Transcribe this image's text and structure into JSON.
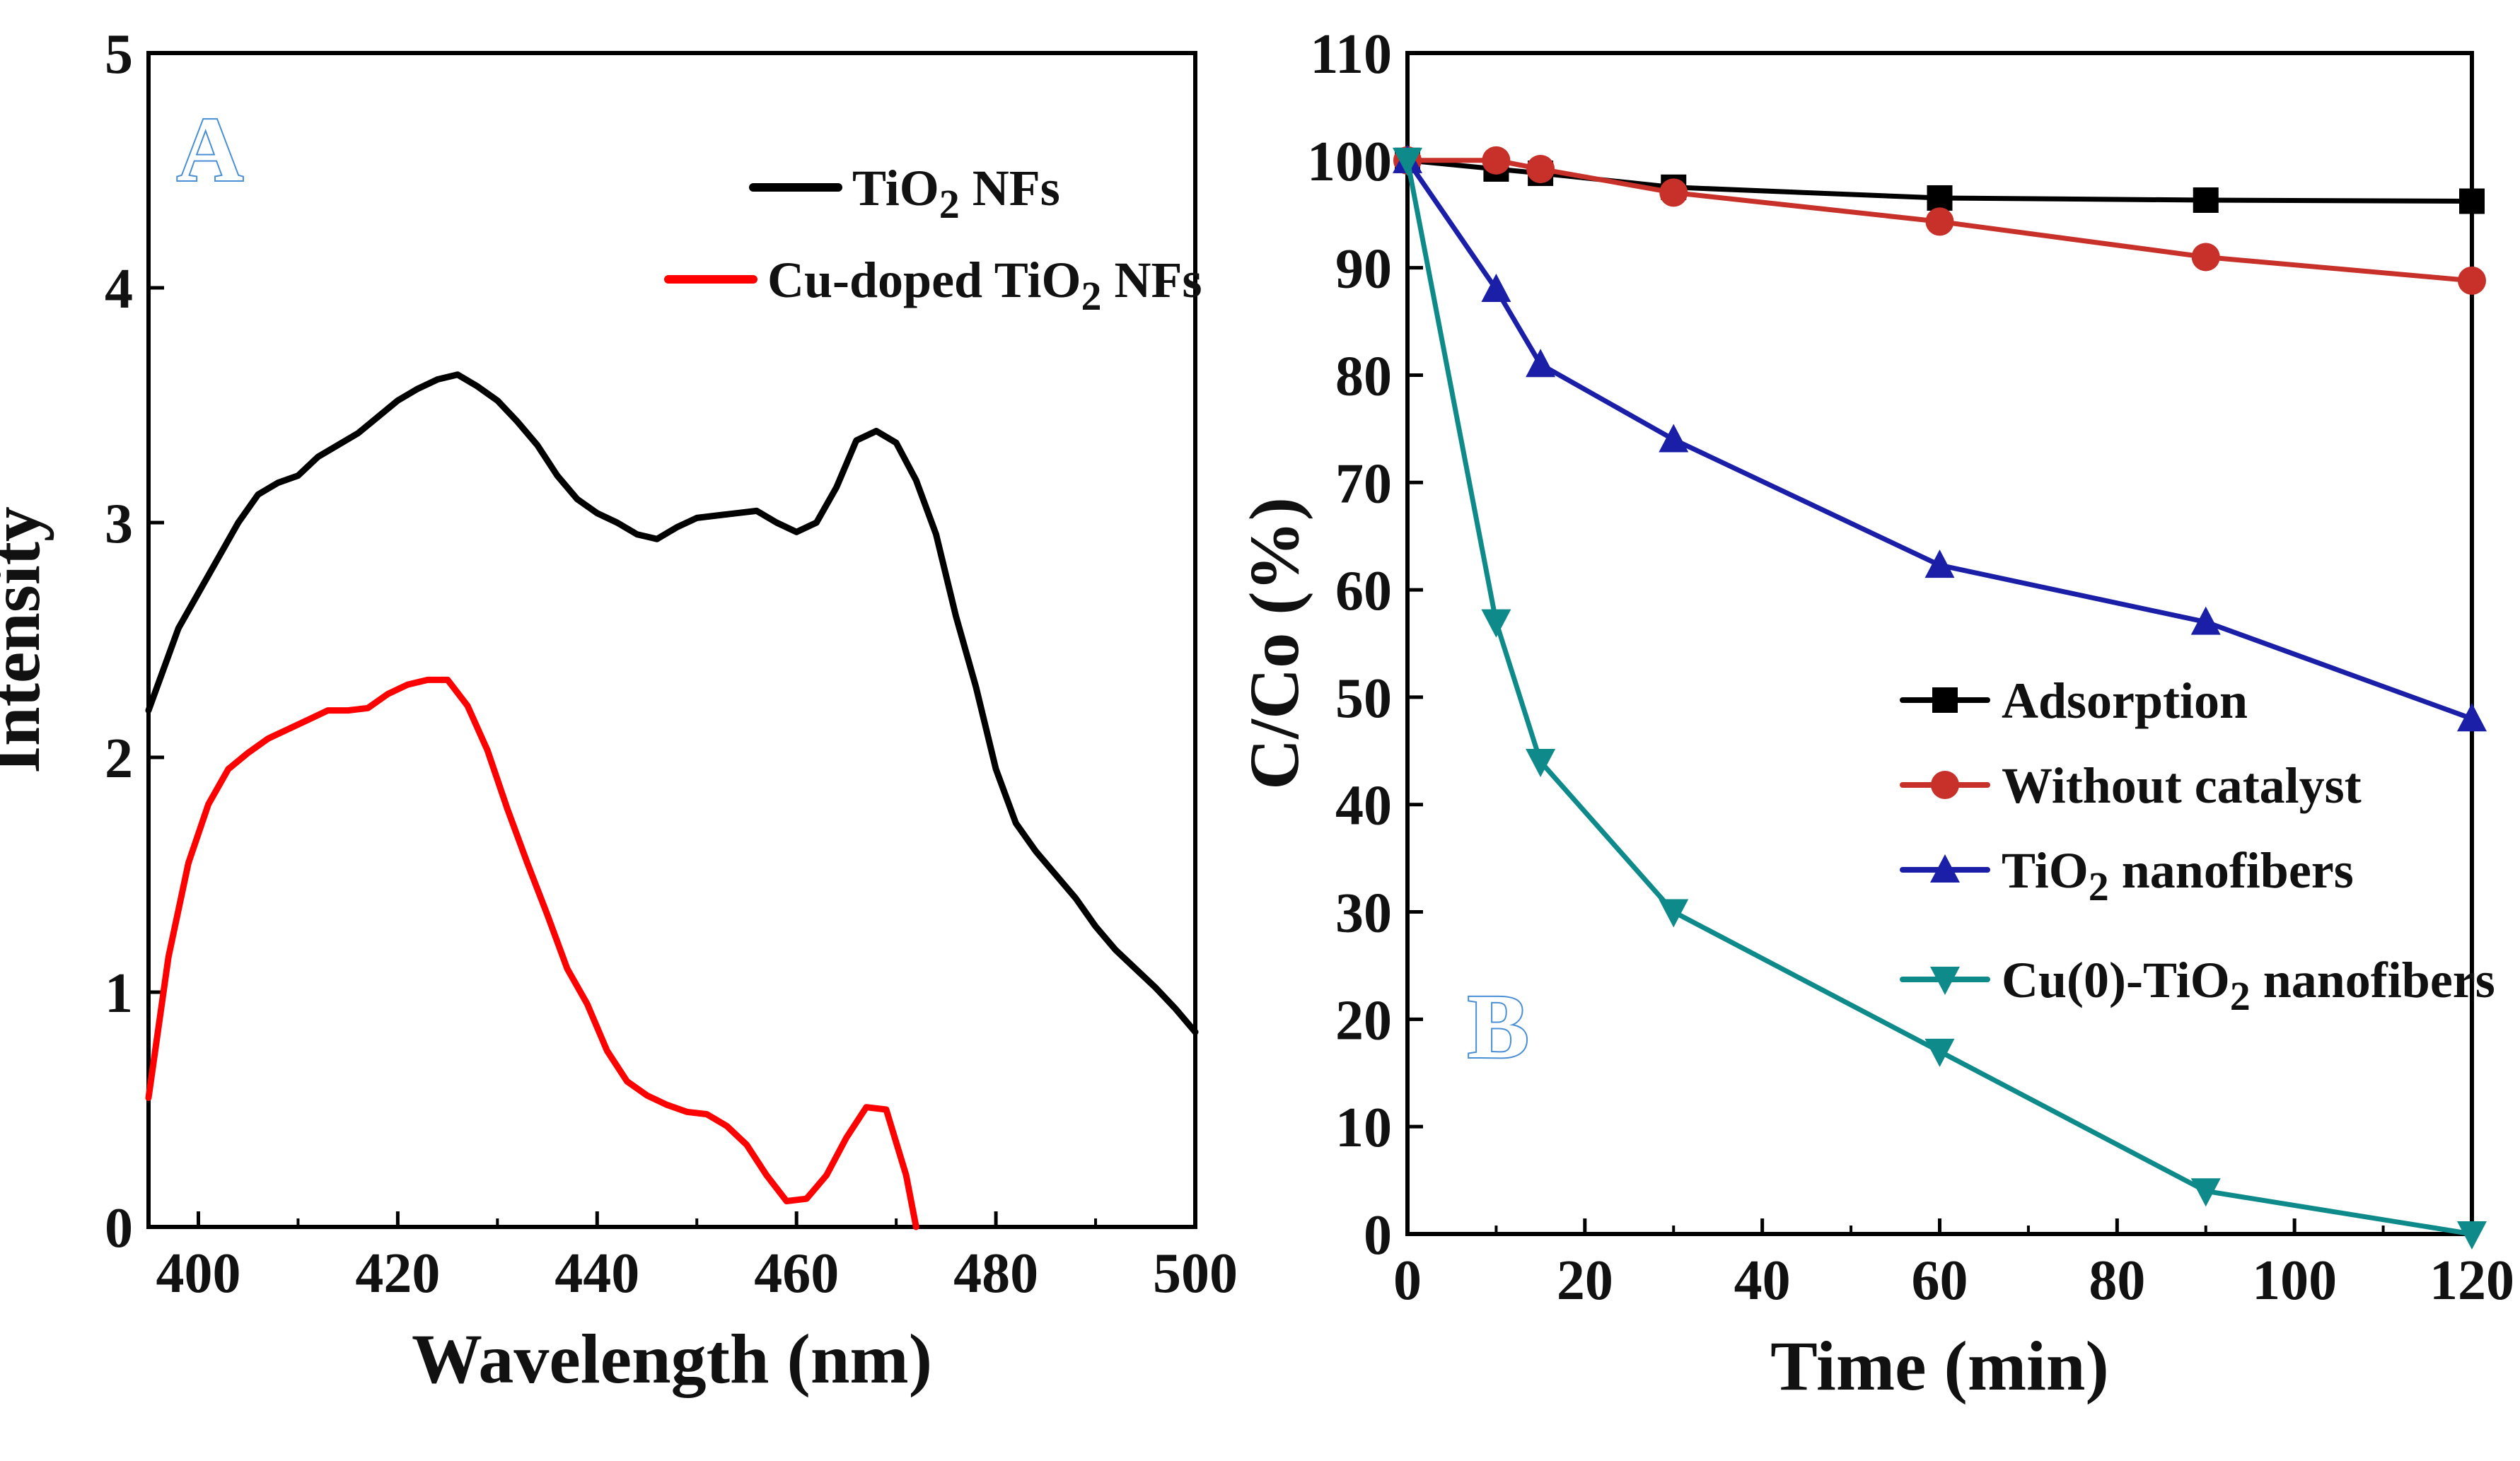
{
  "chart_data": [
    {
      "id": "A",
      "type": "line",
      "panel_label": "A",
      "xlabel": "Wavelength (nm)",
      "ylabel": "Intensity",
      "xlim": [
        395,
        500
      ],
      "ylim": [
        0,
        5
      ],
      "xticks": [
        400,
        420,
        440,
        460,
        480,
        500
      ],
      "yticks": [
        0,
        1,
        2,
        3,
        4,
        5
      ],
      "grid": false,
      "legend_position": "top-right",
      "series": [
        {
          "name": "TiO2 NFs",
          "name_parts": [
            "TiO",
            "2",
            " NFs"
          ],
          "color": "#000000",
          "x": [
            395,
            398,
            400,
            402,
            404,
            406,
            408,
            410,
            412,
            414,
            416,
            418,
            420,
            422,
            424,
            426,
            428,
            430,
            432,
            434,
            436,
            438,
            440,
            442,
            444,
            446,
            448,
            450,
            452,
            454,
            456,
            458,
            460,
            462,
            464,
            466,
            468,
            470,
            472,
            474,
            476,
            478,
            480,
            482,
            484,
            486,
            488,
            490,
            492,
            494,
            496,
            498,
            500
          ],
          "y": [
            2.2,
            2.55,
            2.7,
            2.85,
            3.0,
            3.12,
            3.17,
            3.2,
            3.28,
            3.33,
            3.38,
            3.45,
            3.52,
            3.57,
            3.61,
            3.63,
            3.58,
            3.52,
            3.43,
            3.33,
            3.2,
            3.1,
            3.04,
            3.0,
            2.95,
            2.93,
            2.98,
            3.02,
            3.03,
            3.04,
            3.05,
            3.0,
            2.96,
            3.0,
            3.15,
            3.35,
            3.39,
            3.34,
            3.18,
            2.95,
            2.6,
            2.3,
            1.95,
            1.72,
            1.6,
            1.5,
            1.4,
            1.28,
            1.18,
            1.1,
            1.02,
            0.93,
            0.83
          ]
        },
        {
          "name": "Cu-doped TiO2 NFs",
          "name_parts": [
            "Cu-doped TiO",
            "2",
            " NFs"
          ],
          "color": "#ff0000",
          "x": [
            395,
            397,
            399,
            401,
            403,
            405,
            407,
            409,
            411,
            413,
            415,
            417,
            419,
            421,
            423,
            425,
            427,
            429,
            431,
            433,
            435,
            437,
            439,
            441,
            443,
            445,
            447,
            449,
            451,
            453,
            455,
            457,
            459,
            461,
            463,
            465,
            467,
            469,
            471,
            472
          ],
          "y": [
            0.55,
            1.15,
            1.55,
            1.8,
            1.95,
            2.02,
            2.08,
            2.12,
            2.16,
            2.2,
            2.2,
            2.21,
            2.27,
            2.31,
            2.33,
            2.33,
            2.22,
            2.03,
            1.78,
            1.55,
            1.33,
            1.1,
            0.95,
            0.75,
            0.62,
            0.56,
            0.52,
            0.49,
            0.48,
            0.43,
            0.35,
            0.22,
            0.11,
            0.12,
            0.22,
            0.38,
            0.51,
            0.5,
            0.22,
            0.0
          ]
        }
      ]
    },
    {
      "id": "B",
      "type": "line",
      "panel_label": "B",
      "xlabel": "Time (min)",
      "ylabel": "C/Co (%)",
      "xlim": [
        0,
        120
      ],
      "ylim": [
        0,
        110
      ],
      "xticks": [
        0,
        20,
        40,
        60,
        80,
        100,
        120
      ],
      "yticks": [
        0,
        10,
        20,
        30,
        40,
        50,
        60,
        70,
        80,
        90,
        100,
        110
      ],
      "grid": false,
      "legend_position": "center-right",
      "series": [
        {
          "name": "Adsorption",
          "name_parts": [
            "Adsorption"
          ],
          "color": "#000000",
          "marker": "square",
          "x": [
            0,
            10,
            15,
            30,
            60,
            90,
            120
          ],
          "y": [
            100,
            99.2,
            98.8,
            97.5,
            96.5,
            96.3,
            96.2
          ]
        },
        {
          "name": "Without catalyst",
          "name_parts": [
            " Without catalyst"
          ],
          "color": "#c8302a",
          "marker": "circle",
          "x": [
            0,
            10,
            15,
            30,
            60,
            90,
            120
          ],
          "y": [
            100,
            100,
            99.2,
            97,
            94.3,
            91,
            88.8
          ]
        },
        {
          "name": "TiO2 nanofibers",
          "name_parts": [
            "TiO",
            "2",
            " nanofibers"
          ],
          "color": "#1b1fa8",
          "marker": "triangle-up",
          "x": [
            0,
            10,
            15,
            30,
            60,
            90,
            120
          ],
          "y": [
            100,
            88,
            81,
            74,
            62.3,
            57,
            48
          ]
        },
        {
          "name": "Cu(0)-TiO2 nanofibers",
          "name_parts": [
            "Cu(0)-TiO",
            "2",
            " nanofibers"
          ],
          "color": "#0f8a8a",
          "marker": "triangle-down",
          "x": [
            0,
            10,
            15,
            30,
            60,
            90,
            120
          ],
          "y": [
            100,
            57,
            44,
            30,
            17,
            4,
            0
          ]
        }
      ]
    }
  ]
}
